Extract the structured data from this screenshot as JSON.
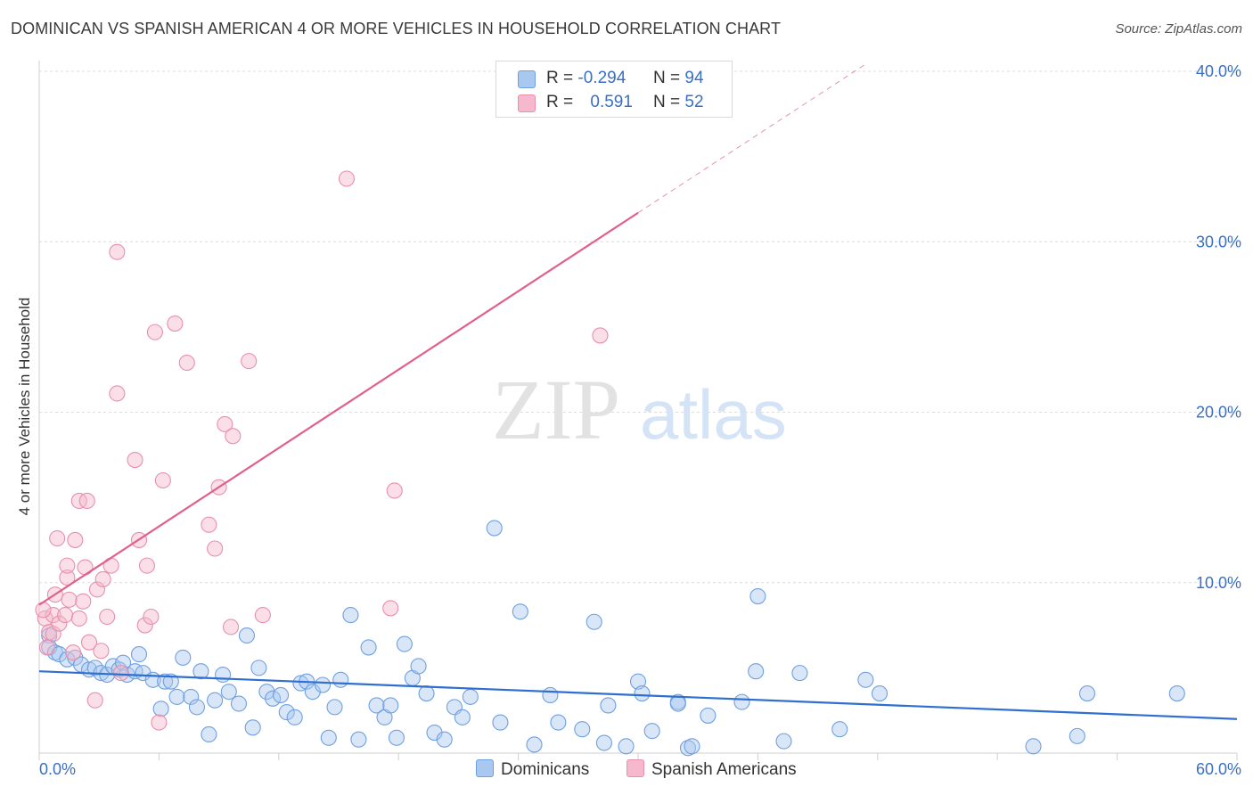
{
  "title": "DOMINICAN VS SPANISH AMERICAN 4 OR MORE VEHICLES IN HOUSEHOLD CORRELATION CHART",
  "source": "Source: ZipAtlas.com",
  "watermark": {
    "zip": "ZIP",
    "atlas": "atlas"
  },
  "legend": {
    "rows": [
      {
        "r_label": "R =",
        "r_value": "-0.294",
        "n_label": "N =",
        "n_value": "94",
        "color": "#a8c8f0"
      },
      {
        "r_label": "R =",
        "r_value": "0.591",
        "n_label": "N =",
        "n_value": "52",
        "color": "#f5b8cc"
      }
    ]
  },
  "bottom_legend": [
    {
      "label": "Dominicans",
      "color": "#a8c8f0"
    },
    {
      "label": "Spanish Americans",
      "color": "#f5b8cc"
    }
  ],
  "chart_data": {
    "type": "scatter",
    "title": "DOMINICAN VS SPANISH AMERICAN 4 OR MORE VEHICLES IN HOUSEHOLD CORRELATION CHART",
    "xlabel": "",
    "ylabel": "4 or more Vehicles in Household",
    "xlim": [
      0,
      60
    ],
    "ylim": [
      0,
      40
    ],
    "x_tick_labels": [
      "0.0%",
      "60.0%"
    ],
    "y_ticks": [
      10,
      20,
      30,
      40
    ],
    "y_tick_labels": [
      "10.0%",
      "20.0%",
      "30.0%",
      "40.0%"
    ],
    "grid": true,
    "legend_position": "top-center",
    "series": [
      {
        "name": "Dominicans",
        "color": "#6fa0e0",
        "fill": "#a8c8f0",
        "trend": {
          "x": [
            0,
            60
          ],
          "y": [
            4.8,
            2.0
          ],
          "style": "solid",
          "color": "#2f6fcf"
        },
        "points": [
          [
            0.5,
            6.9
          ],
          [
            0.5,
            6.2
          ],
          [
            0.8,
            5.9
          ],
          [
            1.0,
            5.8
          ],
          [
            1.4,
            5.5
          ],
          [
            1.8,
            5.6
          ],
          [
            2.1,
            5.2
          ],
          [
            2.5,
            4.9
          ],
          [
            2.8,
            5.0
          ],
          [
            3.1,
            4.7
          ],
          [
            3.4,
            4.6
          ],
          [
            3.7,
            5.1
          ],
          [
            4.0,
            4.9
          ],
          [
            4.2,
            5.3
          ],
          [
            4.4,
            4.6
          ],
          [
            4.8,
            4.8
          ],
          [
            5.0,
            5.8
          ],
          [
            5.2,
            4.7
          ],
          [
            5.7,
            4.3
          ],
          [
            6.1,
            2.6
          ],
          [
            6.3,
            4.2
          ],
          [
            6.6,
            4.2
          ],
          [
            6.9,
            3.3
          ],
          [
            7.2,
            5.6
          ],
          [
            7.6,
            3.3
          ],
          [
            7.9,
            2.7
          ],
          [
            8.1,
            4.8
          ],
          [
            8.5,
            1.1
          ],
          [
            8.8,
            3.1
          ],
          [
            9.2,
            4.6
          ],
          [
            9.5,
            3.6
          ],
          [
            10.0,
            2.9
          ],
          [
            10.4,
            6.9
          ],
          [
            10.7,
            1.5
          ],
          [
            11.0,
            5.0
          ],
          [
            11.4,
            3.6
          ],
          [
            11.7,
            3.2
          ],
          [
            12.1,
            3.4
          ],
          [
            12.4,
            2.4
          ],
          [
            12.8,
            2.1
          ],
          [
            13.1,
            4.1
          ],
          [
            13.4,
            4.2
          ],
          [
            13.7,
            3.6
          ],
          [
            14.2,
            4.0
          ],
          [
            14.5,
            0.9
          ],
          [
            14.8,
            2.7
          ],
          [
            15.1,
            4.3
          ],
          [
            15.6,
            8.1
          ],
          [
            16.0,
            0.8
          ],
          [
            16.5,
            6.2
          ],
          [
            16.9,
            2.8
          ],
          [
            17.3,
            2.1
          ],
          [
            17.6,
            2.8
          ],
          [
            17.9,
            0.9
          ],
          [
            18.3,
            6.4
          ],
          [
            18.7,
            4.4
          ],
          [
            19.0,
            5.1
          ],
          [
            19.4,
            3.5
          ],
          [
            19.8,
            1.2
          ],
          [
            20.3,
            0.8
          ],
          [
            20.8,
            2.7
          ],
          [
            21.2,
            2.1
          ],
          [
            21.6,
            3.3
          ],
          [
            22.8,
            13.2
          ],
          [
            23.1,
            1.8
          ],
          [
            24.1,
            8.3
          ],
          [
            24.8,
            0.5
          ],
          [
            25.6,
            3.4
          ],
          [
            26.0,
            1.8
          ],
          [
            27.2,
            1.4
          ],
          [
            27.8,
            7.7
          ],
          [
            28.3,
            0.6
          ],
          [
            28.5,
            2.8
          ],
          [
            30.0,
            4.2
          ],
          [
            30.2,
            3.5
          ],
          [
            29.4,
            0.4
          ],
          [
            30.7,
            1.3
          ],
          [
            32.0,
            3.0
          ],
          [
            32.0,
            2.9
          ],
          [
            32.5,
            0.3
          ],
          [
            32.7,
            0.4
          ],
          [
            33.5,
            2.2
          ],
          [
            35.2,
            3.0
          ],
          [
            35.9,
            4.8
          ],
          [
            36.0,
            9.2
          ],
          [
            37.3,
            0.7
          ],
          [
            38.1,
            4.7
          ],
          [
            40.1,
            1.4
          ],
          [
            41.4,
            4.3
          ],
          [
            42.1,
            3.5
          ],
          [
            49.8,
            0.4
          ],
          [
            52.0,
            1.0
          ],
          [
            52.5,
            3.5
          ],
          [
            57.0,
            3.5
          ]
        ]
      },
      {
        "name": "Spanish Americans",
        "color": "#e890aa",
        "fill": "#f5b8cc",
        "trend": {
          "x": [
            0,
            30
          ],
          "y": [
            8.7,
            31.7
          ],
          "x_dashed_end": 41.5,
          "y_dashed_end": 40.5,
          "style": "solid+dashed",
          "color": "#e0608a"
        },
        "points": [
          [
            0.3,
            7.9
          ],
          [
            0.4,
            6.2
          ],
          [
            0.5,
            7.1
          ],
          [
            0.7,
            7.0
          ],
          [
            0.7,
            8.1
          ],
          [
            0.8,
            9.3
          ],
          [
            0.9,
            12.6
          ],
          [
            1.0,
            7.6
          ],
          [
            1.3,
            8.1
          ],
          [
            1.4,
            10.3
          ],
          [
            1.4,
            11.0
          ],
          [
            1.5,
            9.0
          ],
          [
            1.7,
            5.9
          ],
          [
            1.8,
            12.5
          ],
          [
            2.0,
            7.9
          ],
          [
            2.0,
            14.8
          ],
          [
            2.2,
            8.9
          ],
          [
            2.3,
            10.9
          ],
          [
            2.4,
            14.8
          ],
          [
            2.5,
            6.5
          ],
          [
            2.8,
            3.1
          ],
          [
            2.9,
            9.6
          ],
          [
            3.1,
            6.0
          ],
          [
            3.2,
            10.2
          ],
          [
            3.4,
            8.0
          ],
          [
            3.6,
            11.0
          ],
          [
            3.9,
            29.4
          ],
          [
            3.9,
            21.1
          ],
          [
            4.1,
            4.7
          ],
          [
            4.8,
            17.2
          ],
          [
            5.0,
            12.5
          ],
          [
            5.3,
            7.5
          ],
          [
            5.4,
            11.0
          ],
          [
            5.6,
            8.0
          ],
          [
            5.8,
            24.7
          ],
          [
            6.0,
            1.8
          ],
          [
            6.2,
            16.0
          ],
          [
            6.8,
            25.2
          ],
          [
            7.4,
            22.9
          ],
          [
            8.5,
            13.4
          ],
          [
            8.8,
            12.0
          ],
          [
            9.0,
            15.6
          ],
          [
            9.3,
            19.3
          ],
          [
            9.6,
            7.4
          ],
          [
            9.7,
            18.6
          ],
          [
            10.5,
            23.0
          ],
          [
            11.2,
            8.1
          ],
          [
            15.4,
            33.7
          ],
          [
            17.6,
            8.5
          ],
          [
            17.8,
            15.4
          ],
          [
            28.1,
            24.5
          ],
          [
            0.2,
            8.4
          ]
        ]
      }
    ]
  }
}
